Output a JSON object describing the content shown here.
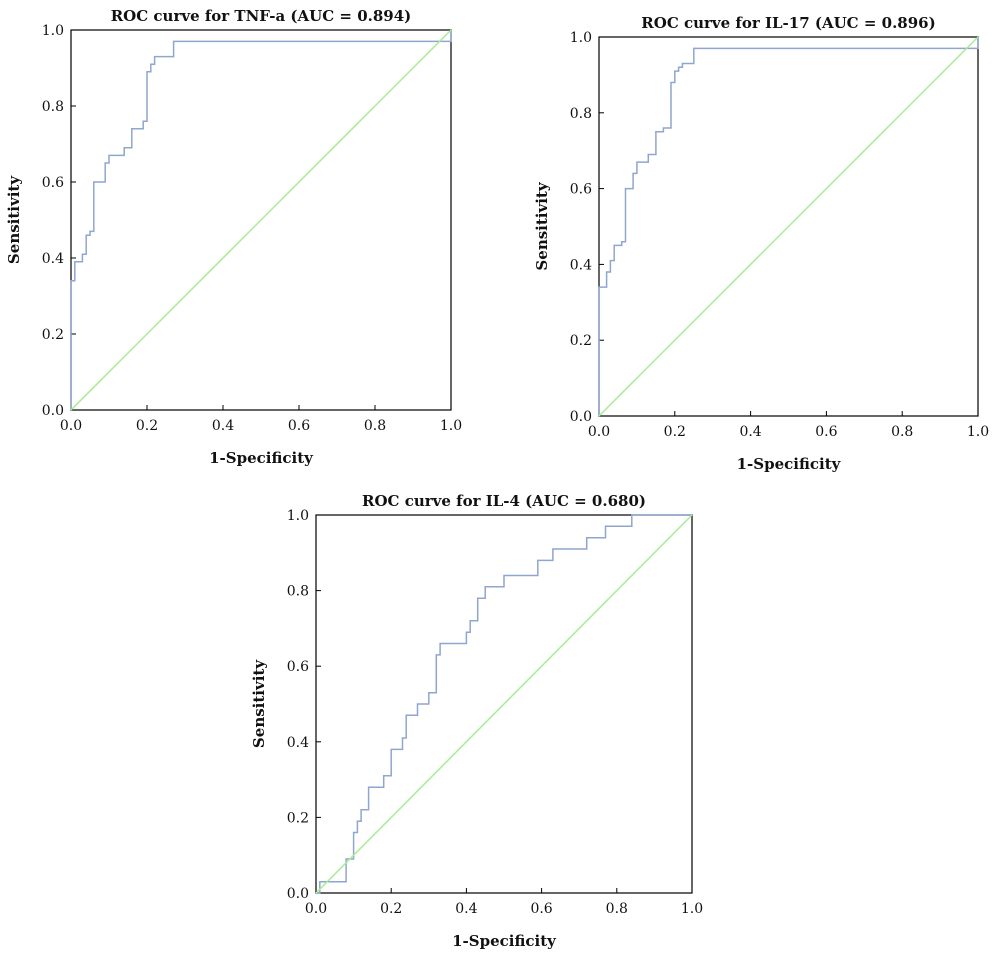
{
  "chart_data": [
    {
      "type": "line",
      "title": "ROC curve for TNF-a (AUC = 0.894)",
      "xlabel": "1-Specificity",
      "ylabel": "Sensitivity",
      "xlim": [
        0,
        1
      ],
      "ylim": [
        0,
        1
      ],
      "xticks": [
        "0.0",
        "0.2",
        "0.4",
        "0.6",
        "0.8",
        "1.0"
      ],
      "yticks": [
        "0.0",
        "0.2",
        "0.4",
        "0.6",
        "0.8",
        "1.0"
      ],
      "grid": false,
      "series": [
        {
          "role": "roc",
          "color": "#8fa6cf",
          "x": [
            0,
            0,
            0.01,
            0.01,
            0.03,
            0.03,
            0.04,
            0.04,
            0.05,
            0.05,
            0.06,
            0.06,
            0.09,
            0.09,
            0.1,
            0.1,
            0.14,
            0.14,
            0.16,
            0.16,
            0.19,
            0.19,
            0.2,
            0.2,
            0.21,
            0.21,
            0.22,
            0.22,
            0.27,
            0.27,
            1.0,
            1.0
          ],
          "y": [
            0,
            0.34,
            0.34,
            0.39,
            0.39,
            0.41,
            0.41,
            0.46,
            0.46,
            0.47,
            0.47,
            0.6,
            0.6,
            0.65,
            0.65,
            0.67,
            0.67,
            0.69,
            0.69,
            0.74,
            0.74,
            0.76,
            0.76,
            0.89,
            0.89,
            0.91,
            0.91,
            0.93,
            0.93,
            0.97,
            0.97,
            1.0
          ]
        },
        {
          "role": "reference",
          "color": "#a6ee8f",
          "x": [
            0,
            1
          ],
          "y": [
            0,
            1
          ]
        }
      ]
    },
    {
      "type": "line",
      "title": "ROC curve for IL-17 (AUC = 0.896)",
      "xlabel": "1-Specificity",
      "ylabel": "Sensitivity",
      "xlim": [
        0,
        1
      ],
      "ylim": [
        0,
        1
      ],
      "xticks": [
        "0.0",
        "0.2",
        "0.4",
        "0.6",
        "0.8",
        "1.0"
      ],
      "yticks": [
        "0.0",
        "0.2",
        "0.4",
        "0.6",
        "0.8",
        "1.0"
      ],
      "grid": false,
      "series": [
        {
          "role": "roc",
          "color": "#8fa6cf",
          "x": [
            0,
            0,
            0.02,
            0.02,
            0.03,
            0.03,
            0.04,
            0.04,
            0.06,
            0.06,
            0.07,
            0.07,
            0.09,
            0.09,
            0.1,
            0.1,
            0.13,
            0.13,
            0.15,
            0.15,
            0.17,
            0.17,
            0.19,
            0.19,
            0.2,
            0.2,
            0.21,
            0.21,
            0.22,
            0.22,
            0.25,
            0.25,
            0.28,
            0.28,
            1.0,
            1.0
          ],
          "y": [
            0,
            0.34,
            0.34,
            0.38,
            0.38,
            0.41,
            0.41,
            0.45,
            0.45,
            0.46,
            0.46,
            0.6,
            0.6,
            0.64,
            0.64,
            0.67,
            0.67,
            0.69,
            0.69,
            0.75,
            0.75,
            0.76,
            0.76,
            0.88,
            0.88,
            0.91,
            0.91,
            0.92,
            0.92,
            0.93,
            0.93,
            0.97,
            0.97,
            0.97,
            0.97,
            1.0
          ]
        },
        {
          "role": "reference",
          "color": "#a6ee8f",
          "x": [
            0,
            1
          ],
          "y": [
            0,
            1
          ]
        }
      ]
    },
    {
      "type": "line",
      "title": "ROC curve for IL-4 (AUC = 0.680)",
      "xlabel": "1-Specificity",
      "ylabel": "Sensitivity",
      "xlim": [
        0,
        1
      ],
      "ylim": [
        0,
        1
      ],
      "xticks": [
        "0.0",
        "0.2",
        "0.4",
        "0.6",
        "0.8",
        "1.0"
      ],
      "yticks": [
        "0.0",
        "0.2",
        "0.4",
        "0.6",
        "0.8",
        "1.0"
      ],
      "grid": false,
      "series": [
        {
          "role": "roc",
          "color": "#8fa6cf",
          "x": [
            0,
            0.01,
            0.01,
            0.08,
            0.08,
            0.1,
            0.1,
            0.11,
            0.11,
            0.12,
            0.12,
            0.14,
            0.14,
            0.18,
            0.18,
            0.2,
            0.2,
            0.23,
            0.23,
            0.24,
            0.24,
            0.27,
            0.27,
            0.3,
            0.3,
            0.32,
            0.32,
            0.33,
            0.33,
            0.4,
            0.4,
            0.41,
            0.41,
            0.43,
            0.43,
            0.45,
            0.45,
            0.5,
            0.5,
            0.59,
            0.59,
            0.63,
            0.63,
            0.72,
            0.72,
            0.77,
            0.77,
            0.84,
            0.84,
            1.0
          ],
          "y": [
            0,
            0,
            0.03,
            0.03,
            0.09,
            0.09,
            0.16,
            0.16,
            0.19,
            0.19,
            0.22,
            0.22,
            0.28,
            0.28,
            0.31,
            0.31,
            0.38,
            0.38,
            0.41,
            0.41,
            0.47,
            0.47,
            0.5,
            0.5,
            0.53,
            0.53,
            0.63,
            0.63,
            0.66,
            0.66,
            0.69,
            0.69,
            0.72,
            0.72,
            0.78,
            0.78,
            0.81,
            0.81,
            0.84,
            0.84,
            0.88,
            0.88,
            0.91,
            0.91,
            0.94,
            0.94,
            0.97,
            0.97,
            1.0,
            1.0
          ]
        },
        {
          "role": "reference",
          "color": "#a6ee8f",
          "x": [
            0,
            1
          ],
          "y": [
            0,
            1
          ]
        }
      ]
    }
  ]
}
